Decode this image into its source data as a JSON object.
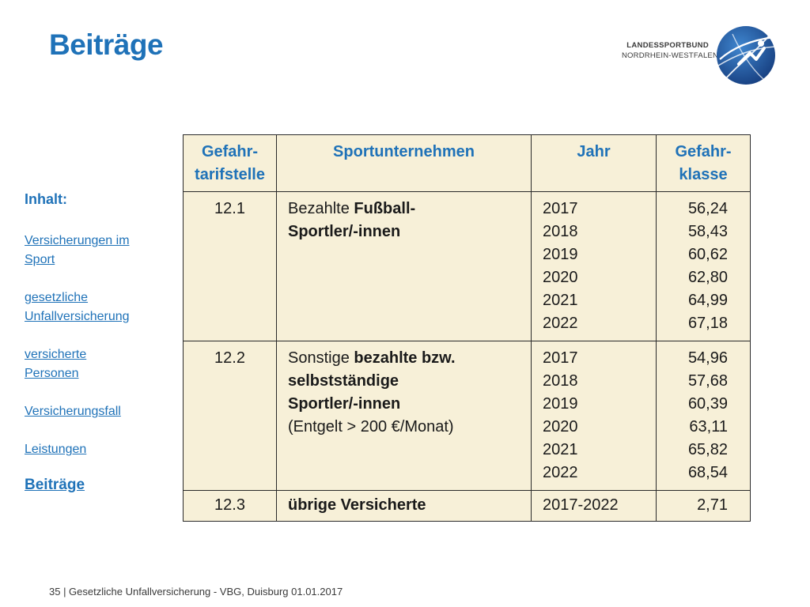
{
  "title": "Beiträge",
  "logo": {
    "line1": "LANDESSPORTBUND",
    "line2": "NORDRHEIN-WESTFALEN",
    "colors": {
      "blue": "#1f5fa8",
      "dark": "#173f80"
    }
  },
  "sidebar": {
    "heading": "Inhalt:",
    "items": [
      {
        "line1": "Versicherungen im",
        "line2": "Sport"
      },
      {
        "line1": "gesetzliche",
        "line2": "Unfallversicherung"
      },
      {
        "line1": "versicherte",
        "line2": "Personen"
      },
      {
        "line1": "Versicherungsfall",
        "line2": ""
      },
      {
        "line1": "Leistungen",
        "line2": ""
      }
    ],
    "active": "Beiträge"
  },
  "table": {
    "headers": {
      "col1_line1": "Gefahr-",
      "col1_line2": "tarifstelle",
      "col2": "Sportunternehmen",
      "col3": "Jahr",
      "col4_line1": "Gefahr-",
      "col4_line2": "klasse"
    },
    "rows": [
      {
        "code": "12.1",
        "desc_plain1": "Bezahlte ",
        "desc_bold1": "Fußball-",
        "desc_bold2": "Sportler/-innen",
        "years": [
          "2017",
          "2018",
          "2019",
          "2020",
          "2021",
          "2022"
        ],
        "values": [
          "56,24",
          "58,43",
          "60,62",
          "62,80",
          "64,99",
          "67,18"
        ]
      },
      {
        "code": "12.2",
        "desc_plain1": "Sonstige ",
        "desc_bold1": "bezahlte bzw.",
        "desc_bold2": "selbstständige",
        "desc_bold3": "Sportler/-innen",
        "desc_plain2": "(Entgelt > 200 €/Monat)",
        "years": [
          "2017",
          "2018",
          "2019",
          "2020",
          "2021",
          "2022"
        ],
        "values": [
          "54,96",
          "57,68",
          "60,39",
          "63,11",
          "65,82",
          "68,54"
        ]
      },
      {
        "code": "12.3",
        "desc_bold1": "übrige Versicherte",
        "year_range": "2017-2022",
        "value": "2,71"
      }
    ]
  },
  "footer": "35 | Gesetzliche Unfallversicherung - VBG, Duisburg 01.01.2017"
}
